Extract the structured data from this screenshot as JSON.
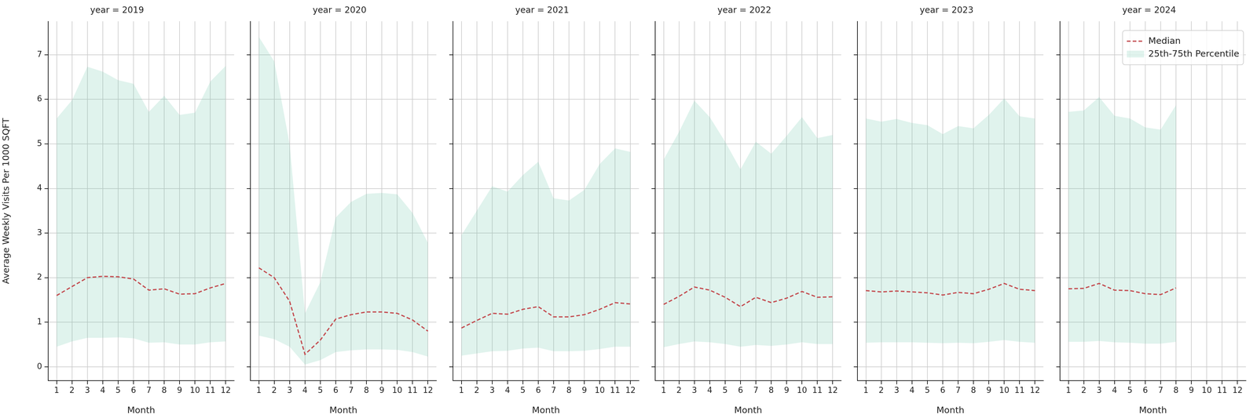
{
  "chart_data": [
    {
      "type": "line",
      "title": "year = 2019",
      "x_label": "Month",
      "y_label": "Average Weekly Visits Per 1000 SQFT",
      "x": [
        1,
        2,
        3,
        4,
        5,
        6,
        7,
        8,
        9,
        10,
        11,
        12
      ],
      "xlim": [
        0.45,
        12.55
      ],
      "xticks": [
        1,
        2,
        3,
        4,
        5,
        6,
        7,
        8,
        9,
        10,
        11,
        12
      ],
      "ylim": [
        -0.31,
        7.75
      ],
      "yticks": [
        0,
        1,
        2,
        3,
        4,
        5,
        6,
        7
      ],
      "grid": true,
      "series": [
        {
          "name": "Median",
          "type": "line",
          "line_style": "dashed",
          "color": "#c44e52",
          "values": [
            1.6,
            1.8,
            2.0,
            2.03,
            2.02,
            1.97,
            1.72,
            1.75,
            1.63,
            1.64,
            1.77,
            1.87
          ]
        },
        {
          "name": "25th-75th Percentile",
          "type": "band",
          "color": "#66c2a5",
          "lower": [
            0.45,
            0.57,
            0.65,
            0.65,
            0.66,
            0.64,
            0.54,
            0.55,
            0.5,
            0.5,
            0.55,
            0.57
          ],
          "upper": [
            5.57,
            5.98,
            6.73,
            6.62,
            6.43,
            6.35,
            5.72,
            6.08,
            5.65,
            5.7,
            6.4,
            6.75
          ]
        }
      ]
    },
    {
      "type": "line",
      "title": "year = 2020",
      "x_label": "Month",
      "tick_labels": "x",
      "x": [
        1,
        2,
        3,
        4,
        5,
        6,
        7,
        8,
        9,
        10,
        11,
        12
      ],
      "xlim": [
        0.45,
        12.55
      ],
      "xticks": [
        1,
        2,
        3,
        4,
        5,
        6,
        7,
        8,
        9,
        10,
        11,
        12
      ],
      "ylim": [
        -0.31,
        7.75
      ],
      "yticks": [
        0,
        1,
        2,
        3,
        4,
        5,
        6,
        7
      ],
      "grid": true,
      "series": [
        {
          "name": "Median",
          "type": "line",
          "line_style": "dashed",
          "color": "#c44e52",
          "values": [
            2.22,
            2.0,
            1.47,
            0.28,
            0.6,
            1.07,
            1.17,
            1.23,
            1.23,
            1.2,
            1.05,
            0.8
          ]
        },
        {
          "name": "25th-75th Percentile",
          "type": "band",
          "color": "#66c2a5",
          "lower": [
            0.7,
            0.62,
            0.45,
            0.05,
            0.15,
            0.33,
            0.37,
            0.39,
            0.39,
            0.38,
            0.33,
            0.23
          ],
          "upper": [
            7.4,
            6.85,
            5.0,
            1.2,
            1.9,
            3.35,
            3.7,
            3.88,
            3.9,
            3.87,
            3.45,
            2.78
          ]
        }
      ]
    },
    {
      "type": "line",
      "title": "year = 2021",
      "x_label": "Month",
      "tick_labels": "x",
      "x": [
        1,
        2,
        3,
        4,
        5,
        6,
        7,
        8,
        9,
        10,
        11,
        12
      ],
      "xlim": [
        0.45,
        12.55
      ],
      "xticks": [
        1,
        2,
        3,
        4,
        5,
        6,
        7,
        8,
        9,
        10,
        11,
        12
      ],
      "ylim": [
        -0.31,
        7.75
      ],
      "yticks": [
        0,
        1,
        2,
        3,
        4,
        5,
        6,
        7
      ],
      "grid": true,
      "series": [
        {
          "name": "Median",
          "type": "line",
          "line_style": "dashed",
          "color": "#c44e52",
          "values": [
            0.87,
            1.04,
            1.2,
            1.18,
            1.29,
            1.35,
            1.12,
            1.12,
            1.17,
            1.29,
            1.44,
            1.41
          ]
        },
        {
          "name": "25th-75th Percentile",
          "type": "band",
          "color": "#66c2a5",
          "lower": [
            0.25,
            0.3,
            0.35,
            0.36,
            0.41,
            0.43,
            0.35,
            0.35,
            0.36,
            0.4,
            0.45,
            0.45
          ],
          "upper": [
            2.95,
            3.5,
            4.05,
            3.93,
            4.3,
            4.6,
            3.78,
            3.73,
            3.97,
            4.55,
            4.9,
            4.82
          ]
        }
      ]
    },
    {
      "type": "line",
      "title": "year = 2022",
      "x_label": "Month",
      "tick_labels": "x",
      "x": [
        1,
        2,
        3,
        4,
        5,
        6,
        7,
        8,
        9,
        10,
        11,
        12
      ],
      "xlim": [
        0.45,
        12.55
      ],
      "xticks": [
        1,
        2,
        3,
        4,
        5,
        6,
        7,
        8,
        9,
        10,
        11,
        12
      ],
      "ylim": [
        -0.31,
        7.75
      ],
      "yticks": [
        0,
        1,
        2,
        3,
        4,
        5,
        6,
        7
      ],
      "grid": true,
      "series": [
        {
          "name": "Median",
          "type": "line",
          "line_style": "dashed",
          "color": "#c44e52",
          "values": [
            1.4,
            1.58,
            1.79,
            1.72,
            1.56,
            1.35,
            1.56,
            1.44,
            1.54,
            1.69,
            1.56,
            1.57
          ]
        },
        {
          "name": "25th-75th Percentile",
          "type": "band",
          "color": "#66c2a5",
          "lower": [
            0.44,
            0.51,
            0.57,
            0.55,
            0.51,
            0.45,
            0.49,
            0.47,
            0.5,
            0.55,
            0.51,
            0.51
          ],
          "upper": [
            4.65,
            5.27,
            5.97,
            5.6,
            5.05,
            4.43,
            5.05,
            4.78,
            5.18,
            5.6,
            5.13,
            5.2
          ]
        }
      ]
    },
    {
      "type": "line",
      "title": "year = 2023",
      "x_label": "Month",
      "tick_labels": "x",
      "x": [
        1,
        2,
        3,
        4,
        5,
        6,
        7,
        8,
        9,
        10,
        11,
        12
      ],
      "xlim": [
        0.45,
        12.55
      ],
      "xticks": [
        1,
        2,
        3,
        4,
        5,
        6,
        7,
        8,
        9,
        10,
        11,
        12
      ],
      "ylim": [
        -0.31,
        7.75
      ],
      "yticks": [
        0,
        1,
        2,
        3,
        4,
        5,
        6,
        7
      ],
      "grid": true,
      "series": [
        {
          "name": "Median",
          "type": "line",
          "line_style": "dashed",
          "color": "#c44e52",
          "values": [
            1.71,
            1.68,
            1.7,
            1.68,
            1.66,
            1.61,
            1.67,
            1.64,
            1.74,
            1.87,
            1.74,
            1.71
          ]
        },
        {
          "name": "25th-75th Percentile",
          "type": "band",
          "color": "#66c2a5",
          "lower": [
            0.54,
            0.55,
            0.55,
            0.55,
            0.54,
            0.53,
            0.54,
            0.53,
            0.56,
            0.6,
            0.56,
            0.54
          ],
          "upper": [
            5.57,
            5.5,
            5.56,
            5.47,
            5.42,
            5.22,
            5.4,
            5.35,
            5.65,
            6.02,
            5.62,
            5.57
          ]
        }
      ]
    },
    {
      "type": "line",
      "title": "year = 2024",
      "x_label": "Month",
      "tick_labels": "x",
      "legend": "upper right",
      "x": [
        1,
        2,
        3,
        4,
        5,
        6,
        7,
        8,
        9,
        10,
        11,
        12
      ],
      "xlim": [
        0.45,
        12.55
      ],
      "xticks": [
        1,
        2,
        3,
        4,
        5,
        6,
        7,
        8,
        9,
        10,
        11,
        12
      ],
      "ylim": [
        -0.31,
        7.75
      ],
      "yticks": [
        0,
        1,
        2,
        3,
        4,
        5,
        6,
        7
      ],
      "grid": true,
      "series": [
        {
          "name": "Median",
          "type": "line",
          "line_style": "dashed",
          "color": "#c44e52",
          "values": [
            1.75,
            1.76,
            1.87,
            1.72,
            1.71,
            1.64,
            1.62,
            1.77,
            null,
            null,
            null,
            null
          ]
        },
        {
          "name": "25th-75th Percentile",
          "type": "band",
          "color": "#66c2a5",
          "lower": [
            0.56,
            0.56,
            0.58,
            0.55,
            0.54,
            0.52,
            0.52,
            0.56,
            null,
            null,
            null,
            null
          ],
          "upper": [
            5.72,
            5.75,
            6.05,
            5.63,
            5.57,
            5.37,
            5.32,
            5.87,
            null,
            null,
            null,
            null
          ]
        }
      ]
    }
  ]
}
